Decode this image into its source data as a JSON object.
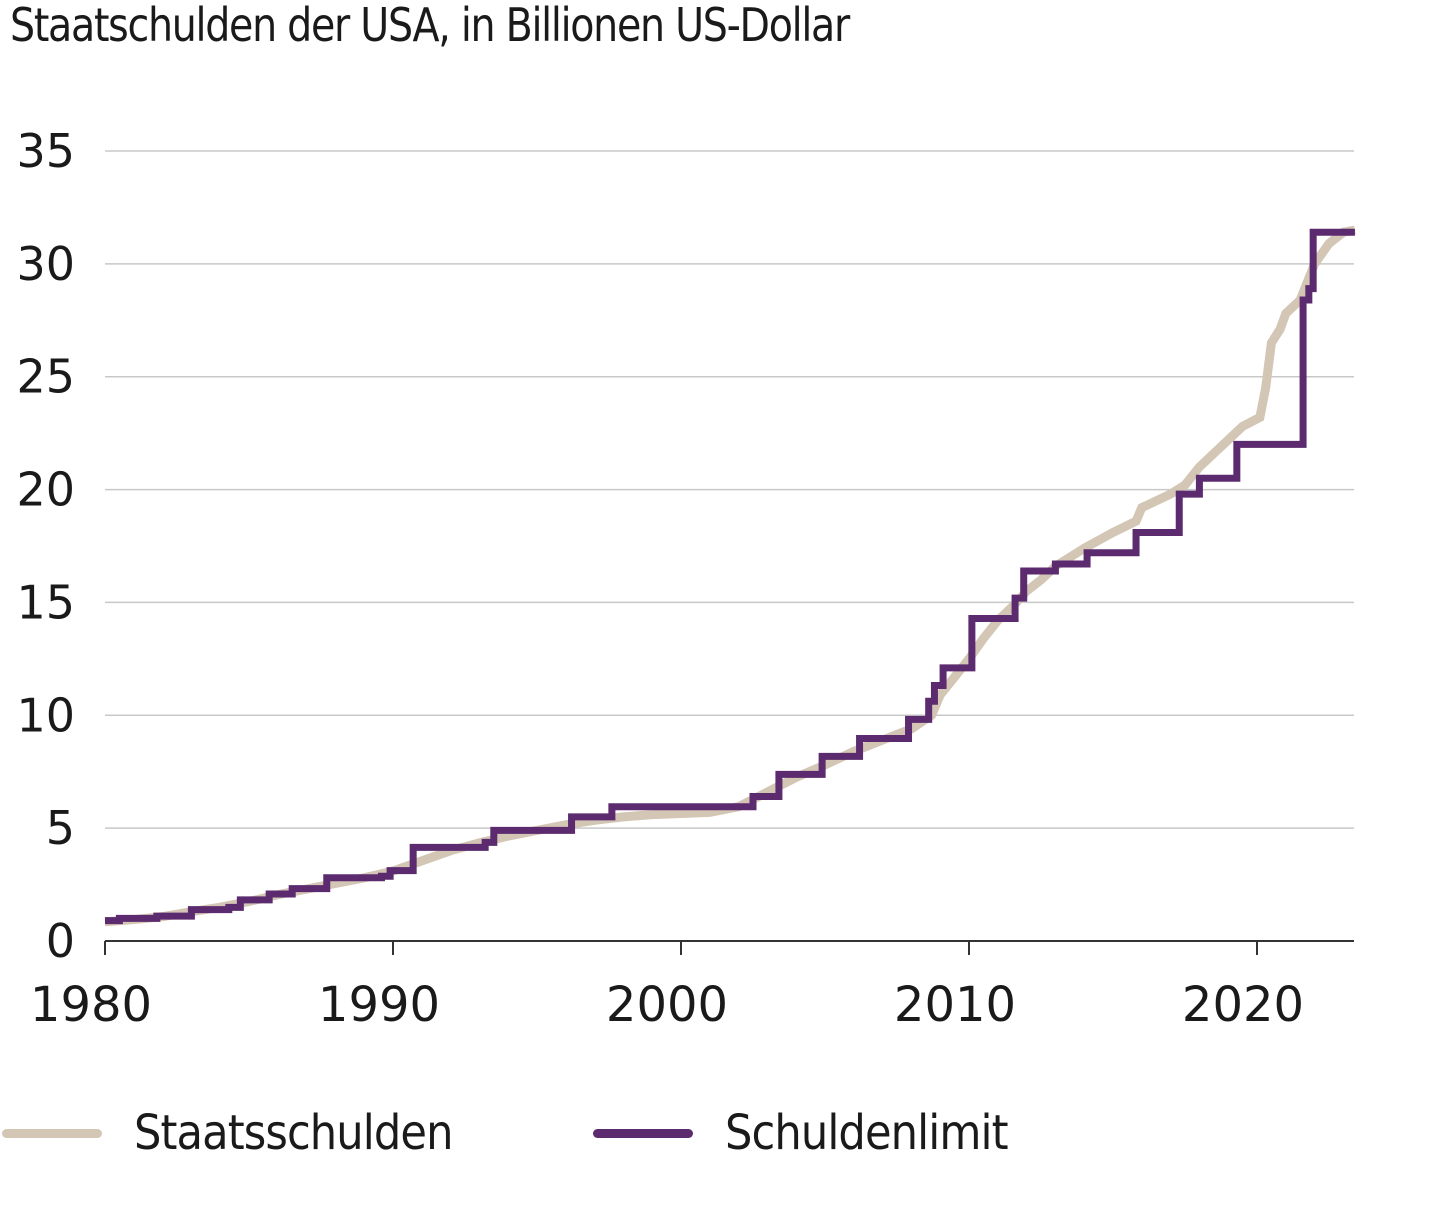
{
  "chart_data": {
    "type": "line",
    "title": "Staatschulden der USA, in Billionen US-Dollar",
    "xlabel": "",
    "ylabel": "",
    "xlim": [
      1980,
      2023.4
    ],
    "ylim": [
      0,
      35
    ],
    "grid": true,
    "legend_position": "bottom",
    "y_ticks": [
      "0",
      "5",
      "10",
      "15",
      "20",
      "25",
      "30",
      "35"
    ],
    "y_tick_values": [
      0,
      5,
      10,
      15,
      20,
      25,
      30,
      35
    ],
    "x_ticks": [
      "1980",
      "1990",
      "2000",
      "2010",
      "2020"
    ],
    "x_tick_values": [
      1980,
      1990,
      2000,
      2010,
      2020
    ],
    "series": [
      {
        "name": "Staatsschulden",
        "color": "#d3c6b4",
        "step": false,
        "x": [
          1980,
          1981,
          1982,
          1983,
          1984,
          1985,
          1986,
          1987,
          1988,
          1989,
          1990,
          1991,
          1992,
          1993,
          1994,
          1995,
          1996,
          1997,
          1998,
          1999,
          2000,
          2001,
          2002,
          2003,
          2004,
          2005,
          2006,
          2007,
          2008,
          2008.7,
          2009,
          2009.5,
          2010,
          2010.5,
          2011,
          2011.5,
          2012,
          2012.5,
          2013,
          2014,
          2015,
          2015.8,
          2016,
          2017,
          2017.5,
          2018,
          2018.5,
          2019,
          2019.5,
          2020.1,
          2020.3,
          2020.5,
          2020.8,
          2021,
          2021.5,
          2022,
          2022.5,
          2023,
          2023.4
        ],
        "values": [
          0.85,
          0.95,
          1.08,
          1.3,
          1.5,
          1.75,
          2.05,
          2.3,
          2.55,
          2.8,
          3.1,
          3.55,
          4.0,
          4.35,
          4.65,
          4.9,
          5.15,
          5.35,
          5.5,
          5.6,
          5.65,
          5.7,
          5.95,
          6.6,
          7.25,
          7.8,
          8.4,
          8.9,
          9.4,
          10.0,
          10.9,
          11.7,
          12.5,
          13.4,
          14.2,
          14.8,
          15.5,
          16.0,
          16.6,
          17.4,
          18.1,
          18.6,
          19.2,
          19.8,
          20.2,
          21.0,
          21.6,
          22.2,
          22.8,
          23.2,
          24.5,
          26.5,
          27.1,
          27.8,
          28.4,
          30.0,
          30.9,
          31.4,
          31.5
        ]
      },
      {
        "name": "Schuldenlimit",
        "color": "#5c2a6e",
        "step": true,
        "x": [
          1980,
          1980.5,
          1981.8,
          1983.0,
          1984.3,
          1984.7,
          1985.7,
          1986.5,
          1987.7,
          1989.6,
          1989.9,
          1990.7,
          1993.2,
          1993.5,
          1996.2,
          1997.6,
          2002.5,
          2003.4,
          2004.9,
          2006.2,
          2007.9,
          2008.6,
          2008.8,
          2009.1,
          2010.1,
          2011.6,
          2011.9,
          2013.0,
          2014.1,
          2015.8,
          2017.3,
          2018.0,
          2019.3,
          2021.6,
          2021.8,
          2021.95,
          2023.4
        ],
        "values": [
          0.9,
          1.0,
          1.1,
          1.39,
          1.49,
          1.82,
          2.08,
          2.32,
          2.8,
          2.87,
          3.12,
          4.15,
          4.37,
          4.9,
          5.5,
          5.95,
          6.4,
          7.38,
          8.18,
          8.97,
          9.82,
          10.62,
          11.32,
          12.1,
          14.29,
          15.19,
          16.39,
          16.7,
          17.2,
          18.1,
          19.8,
          20.5,
          22.0,
          28.4,
          28.9,
          31.4,
          31.4
        ]
      }
    ]
  },
  "legend": {
    "items": [
      {
        "label": "Staatsschulden",
        "color": "#d3c6b4"
      },
      {
        "label": "Schuldenlimit",
        "color": "#5c2a6e"
      }
    ]
  }
}
